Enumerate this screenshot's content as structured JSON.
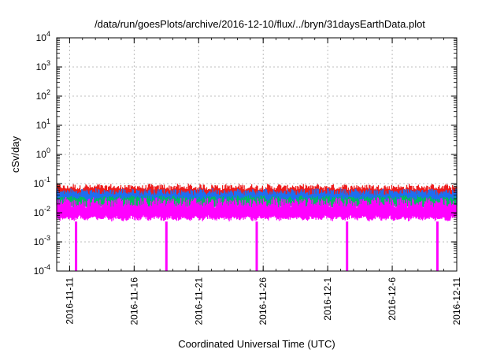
{
  "chart_data": {
    "type": "line",
    "title": "/data/run/goesPlots/archive/2016-12-10/flux/../bryn/31daysEarthData.plot",
    "xlabel": "Coordinated Universal Time (UTC)",
    "ylabel": "cSv/day",
    "x_start": "2016-11-10",
    "x_end": "2016-12-11",
    "xlim": [
      "2016-11-10",
      "2016-12-11"
    ],
    "ylim": [
      0.0001,
      10000
    ],
    "yscale": "log",
    "grid": true,
    "x_ticks": [
      "2016-11-11",
      "2016-11-16",
      "2016-11-21",
      "2016-11-26",
      "2016-12-1",
      "2016-12-6",
      "2016-12-11"
    ],
    "y_tick_exponents": [
      "-4",
      "-3",
      "-2",
      "-1",
      "0",
      "1",
      "2",
      "3",
      "4"
    ],
    "y_tick_base": "10",
    "series_colors": [
      "#ee1c1c",
      "#1e6ef0",
      "#00bb60",
      "#ff00ff"
    ],
    "series_bands": [
      {
        "low": 0.03,
        "high": 0.1
      },
      {
        "low": 0.02,
        "high": 0.07
      },
      {
        "low": 0.014,
        "high": 0.04
      },
      {
        "low": 0.005,
        "high": 0.035
      }
    ],
    "dropouts": [
      "2016-11-11",
      "2016-11-18",
      "2016-11-25",
      "2016-12-2",
      "2016-12-9"
    ]
  }
}
